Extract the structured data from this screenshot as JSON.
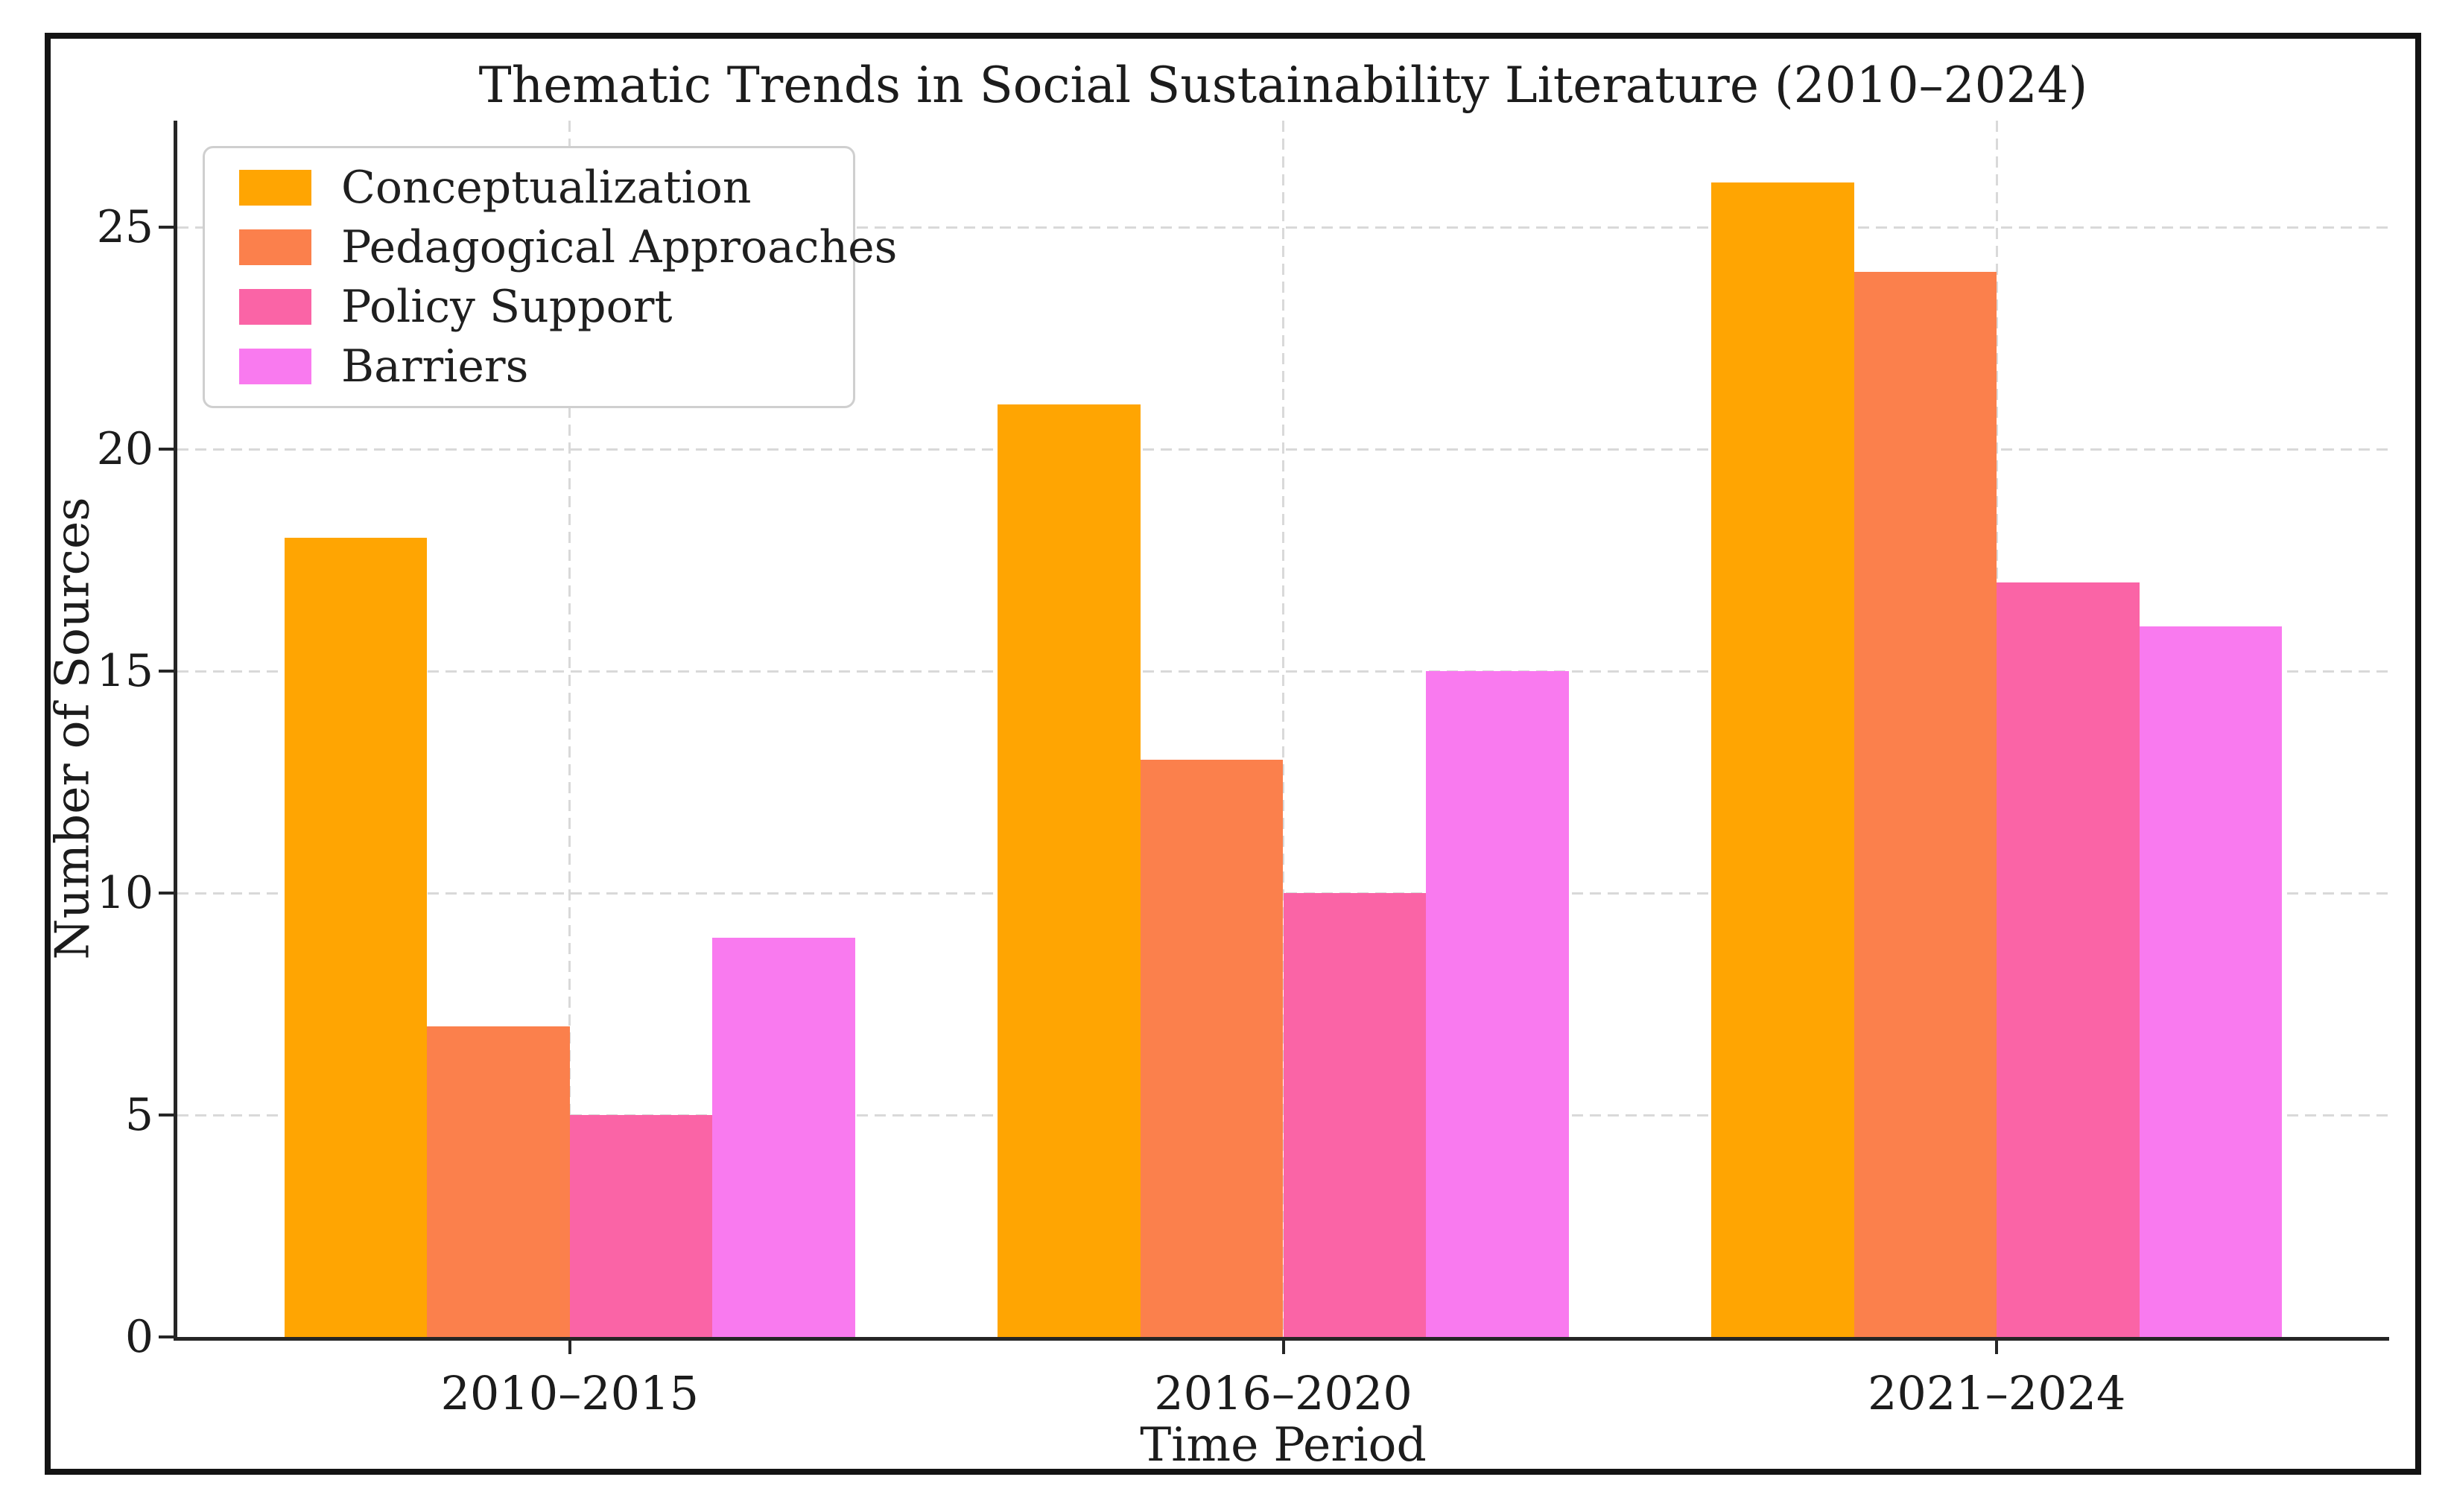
{
  "chart_data": {
    "type": "bar",
    "title": "Thematic Trends in Social Sustainability Literature (2010–2024)",
    "xlabel": "Time Period",
    "ylabel": "Number of Sources",
    "categories": [
      "2010–2015",
      "2016–2020",
      "2021–2024"
    ],
    "series": [
      {
        "name": "Conceptualization",
        "color": "#FFA502",
        "values": [
          18,
          21,
          26
        ]
      },
      {
        "name": "Pedagogical Approaches",
        "color": "#FB804C",
        "values": [
          7,
          13,
          24
        ]
      },
      {
        "name": "Policy Support",
        "color": "#FA64A6",
        "values": [
          5,
          10,
          17
        ]
      },
      {
        "name": "Barriers",
        "color": "#F97AEF",
        "values": [
          9,
          15,
          16
        ]
      }
    ],
    "y_ticks": [
      0,
      5,
      10,
      15,
      20,
      25
    ],
    "ylim": [
      0,
      27.4
    ],
    "xlim": [
      -0.55,
      2.55
    ],
    "bar_width": 0.2,
    "grid": "dashed",
    "legend_position": "upper left"
  }
}
